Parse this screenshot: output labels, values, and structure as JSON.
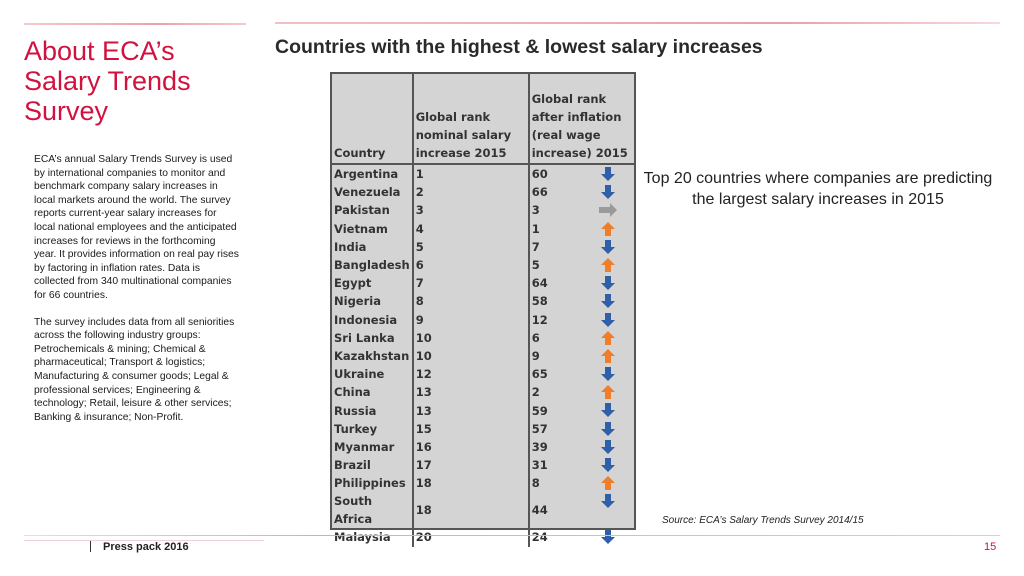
{
  "sidebar": {
    "title": "About ECA’s Salary Trends Survey",
    "paragraph_1": "ECA’s annual Salary Trends Survey is used by international companies to monitor and benchmark company salary increases in local markets around the world. The survey reports current-year salary increases for local national employees and the anticipated increases for reviews in the forthcoming year. It provides information on real pay rises by factoring in inflation rates. Data is collected from 340 multinational companies for 66 countries.",
    "paragraph_2": "The survey includes data from all seniorities across the following industry groups: Petrochemicals & mining; Chemical & pharmaceutical; Transport & logistics; Manufacturing & consumer goods; Legal & professional services; Engineering & technology; Retail, leisure & other services; Banking & insurance; Non-Profit."
  },
  "main": {
    "title": "Countries with the highest & lowest salary increases",
    "caption": "Top 20 countries where companies are predicting the largest salary increases in 2015",
    "source": "Source: ECA’s Salary Trends Survey 2014/15"
  },
  "table": {
    "headers": [
      "Country",
      "Global rank nominal salary increase 2015",
      "Global rank after inflation (real wage increase) 2015"
    ],
    "rows": [
      {
        "country": "Argentina",
        "nominal": "1",
        "real": "60",
        "arrow": "down"
      },
      {
        "country": "Venezuela",
        "nominal": "2",
        "real": "66",
        "arrow": "down"
      },
      {
        "country": "Pakistan",
        "nominal": "3",
        "real": "3",
        "arrow": "right"
      },
      {
        "country": "Vietnam",
        "nominal": "4",
        "real": "1",
        "arrow": "up"
      },
      {
        "country": "India",
        "nominal": "5",
        "real": "7",
        "arrow": "down"
      },
      {
        "country": "Bangladesh",
        "nominal": "6",
        "real": "5",
        "arrow": "up"
      },
      {
        "country": "Egypt",
        "nominal": "7",
        "real": "64",
        "arrow": "down"
      },
      {
        "country": "Nigeria",
        "nominal": "8",
        "real": "58",
        "arrow": "down"
      },
      {
        "country": "Indonesia",
        "nominal": "9",
        "real": "12",
        "arrow": "down"
      },
      {
        "country": "Sri Lanka",
        "nominal": "10",
        "real": "6",
        "arrow": "up"
      },
      {
        "country": "Kazakhstan",
        "nominal": "10",
        "real": "9",
        "arrow": "up"
      },
      {
        "country": "Ukraine",
        "nominal": "12",
        "real": "65",
        "arrow": "down"
      },
      {
        "country": "China",
        "nominal": "13",
        "real": "2",
        "arrow": "up"
      },
      {
        "country": "Russia",
        "nominal": "13",
        "real": "59",
        "arrow": "down"
      },
      {
        "country": "Turkey",
        "nominal": "15",
        "real": "57",
        "arrow": "down"
      },
      {
        "country": "Myanmar",
        "nominal": "16",
        "real": "39",
        "arrow": "down"
      },
      {
        "country": "Brazil",
        "nominal": "17",
        "real": "31",
        "arrow": "down"
      },
      {
        "country": "Philippines",
        "nominal": "18",
        "real": "8",
        "arrow": "up"
      },
      {
        "country": "South Africa",
        "nominal": "18",
        "real": "44",
        "arrow": "down"
      },
      {
        "country": "Malaysia",
        "nominal": "20",
        "real": "24",
        "arrow": "down"
      }
    ]
  },
  "colors": {
    "accent": "#d1123f",
    "arrow_down": "#2f5fa8",
    "arrow_up": "#ef7d2a",
    "arrow_right": "#9a9a9a"
  },
  "footer": {
    "label": "Press pack 2016",
    "page": "15"
  }
}
